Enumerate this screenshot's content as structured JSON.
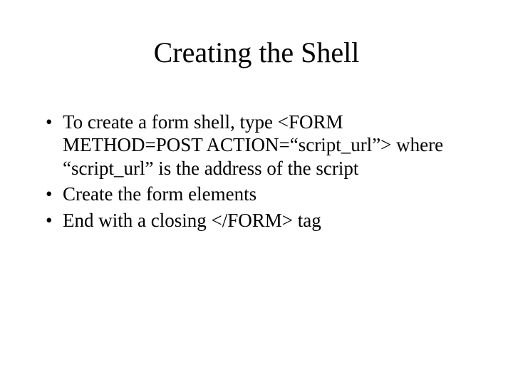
{
  "slide": {
    "title": "Creating the Shell",
    "title_fontsize": 40,
    "body_fontsize": 27,
    "font_family": "Times New Roman",
    "background_color": "#ffffff",
    "text_color": "#000000",
    "bullets": [
      "To create a form shell, type <FORM METHOD=POST ACTION=“script_url”> where “script_url” is the address of the script",
      "Create the form elements",
      "End with a closing </FORM> tag"
    ]
  }
}
